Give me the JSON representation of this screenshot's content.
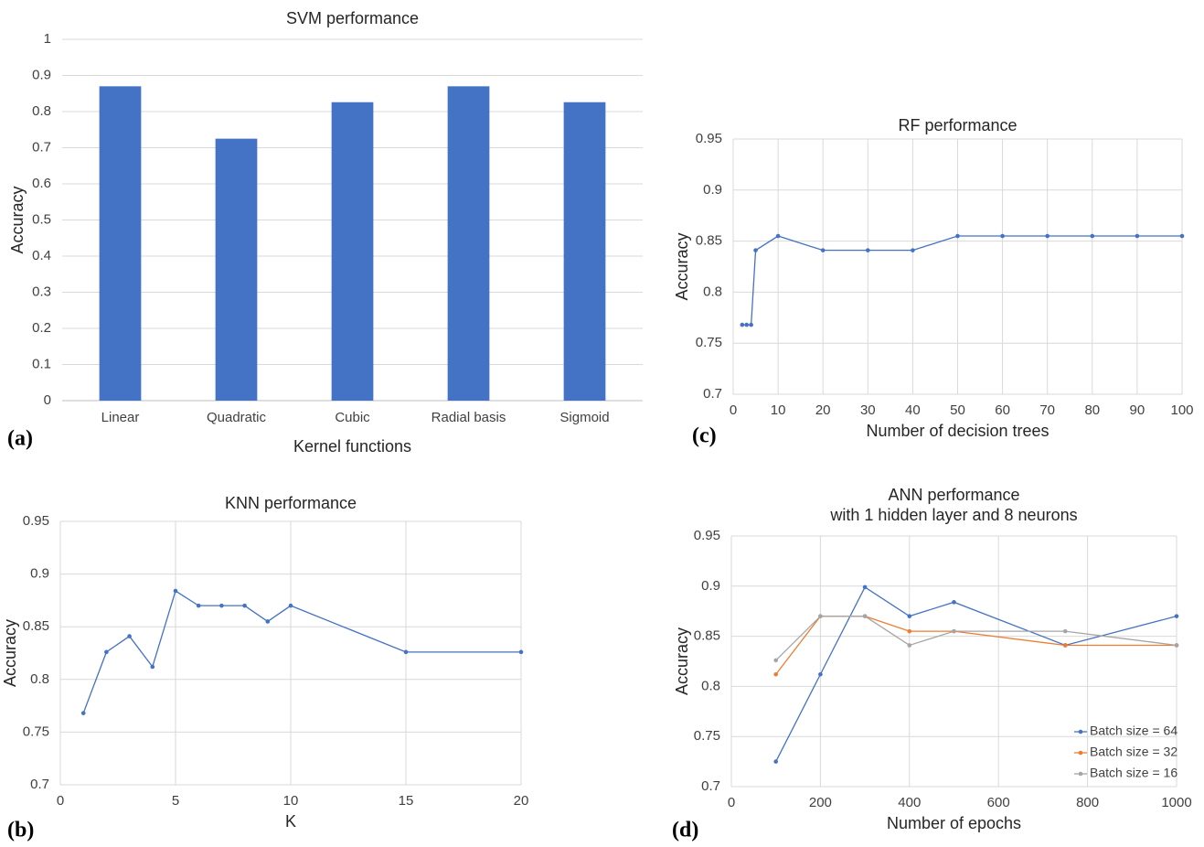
{
  "chart_data": [
    {
      "type": "bar",
      "title": "SVM performance",
      "panel_label": "(a)",
      "x_label": "Kernel functions",
      "y_label": "Accuracy",
      "categories": [
        "Linear",
        "Quadratic",
        "Cubic",
        "Radial basis",
        "Sigmoid"
      ],
      "values": [
        0.87,
        0.725,
        0.826,
        0.87,
        0.826
      ],
      "color": "#4472c4",
      "ylim": [
        0,
        1
      ],
      "yticks": [
        0,
        0.1,
        0.2,
        0.3,
        0.4,
        0.5,
        0.6,
        0.7,
        0.8,
        0.9,
        1
      ],
      "grid": "y"
    },
    {
      "type": "line",
      "title": "RF performance",
      "panel_label": "(c)",
      "x_label": "Number of decision trees",
      "y_label": "Accuracy",
      "x": [
        2,
        3,
        4,
        5,
        10,
        20,
        30,
        40,
        50,
        60,
        70,
        80,
        90,
        100
      ],
      "values": [
        0.768,
        0.768,
        0.768,
        0.841,
        0.855,
        0.841,
        0.841,
        0.841,
        0.855,
        0.855,
        0.855,
        0.855,
        0.855,
        0.855
      ],
      "color": "#4472c4",
      "xlim": [
        0,
        100
      ],
      "xticks": [
        0,
        10,
        20,
        30,
        40,
        50,
        60,
        70,
        80,
        90,
        100
      ],
      "ylim": [
        0.7,
        0.95
      ],
      "yticks": [
        0.7,
        0.75,
        0.8,
        0.85,
        0.9,
        0.95
      ],
      "grid": "both"
    },
    {
      "type": "line",
      "title": "KNN performance",
      "panel_label": "(b)",
      "x_label": "K",
      "y_label": "Accuracy",
      "x": [
        1,
        2,
        3,
        4,
        5,
        6,
        7,
        8,
        9,
        10,
        15,
        20
      ],
      "values": [
        0.768,
        0.826,
        0.841,
        0.812,
        0.884,
        0.87,
        0.87,
        0.87,
        0.855,
        0.87,
        0.826,
        0.826
      ],
      "color": "#4472c4",
      "xlim": [
        0,
        20
      ],
      "xticks": [
        0,
        5,
        10,
        15,
        20
      ],
      "ylim": [
        0.7,
        0.95
      ],
      "yticks": [
        0.7,
        0.75,
        0.8,
        0.85,
        0.9,
        0.95
      ],
      "grid": "both"
    },
    {
      "type": "line",
      "title": "ANN performance",
      "subtitle": "with 1 hidden layer and 8 neurons",
      "panel_label": "(d)",
      "x_label": "Number of epochs",
      "y_label": "Accuracy",
      "x": [
        100,
        200,
        300,
        400,
        500,
        750,
        1000
      ],
      "series": [
        {
          "name": "Batch size = 64",
          "color": "#4472c4",
          "values": [
            0.725,
            0.812,
            0.899,
            0.87,
            0.884,
            0.841,
            0.87
          ]
        },
        {
          "name": "Batch size = 32",
          "color": "#ed7d31",
          "values": [
            0.812,
            0.87,
            0.87,
            0.855,
            0.855,
            0.841,
            0.841
          ]
        },
        {
          "name": "Batch size = 16",
          "color": "#a5a5a5",
          "values": [
            0.826,
            0.87,
            0.87,
            0.841,
            0.855,
            0.855,
            0.841
          ]
        }
      ],
      "xlim": [
        0,
        1000
      ],
      "xticks": [
        0,
        200,
        400,
        600,
        800,
        1000
      ],
      "ylim": [
        0.7,
        0.95
      ],
      "yticks": [
        0.7,
        0.75,
        0.8,
        0.85,
        0.9,
        0.95
      ],
      "grid": "both",
      "legend": "lower right"
    }
  ]
}
